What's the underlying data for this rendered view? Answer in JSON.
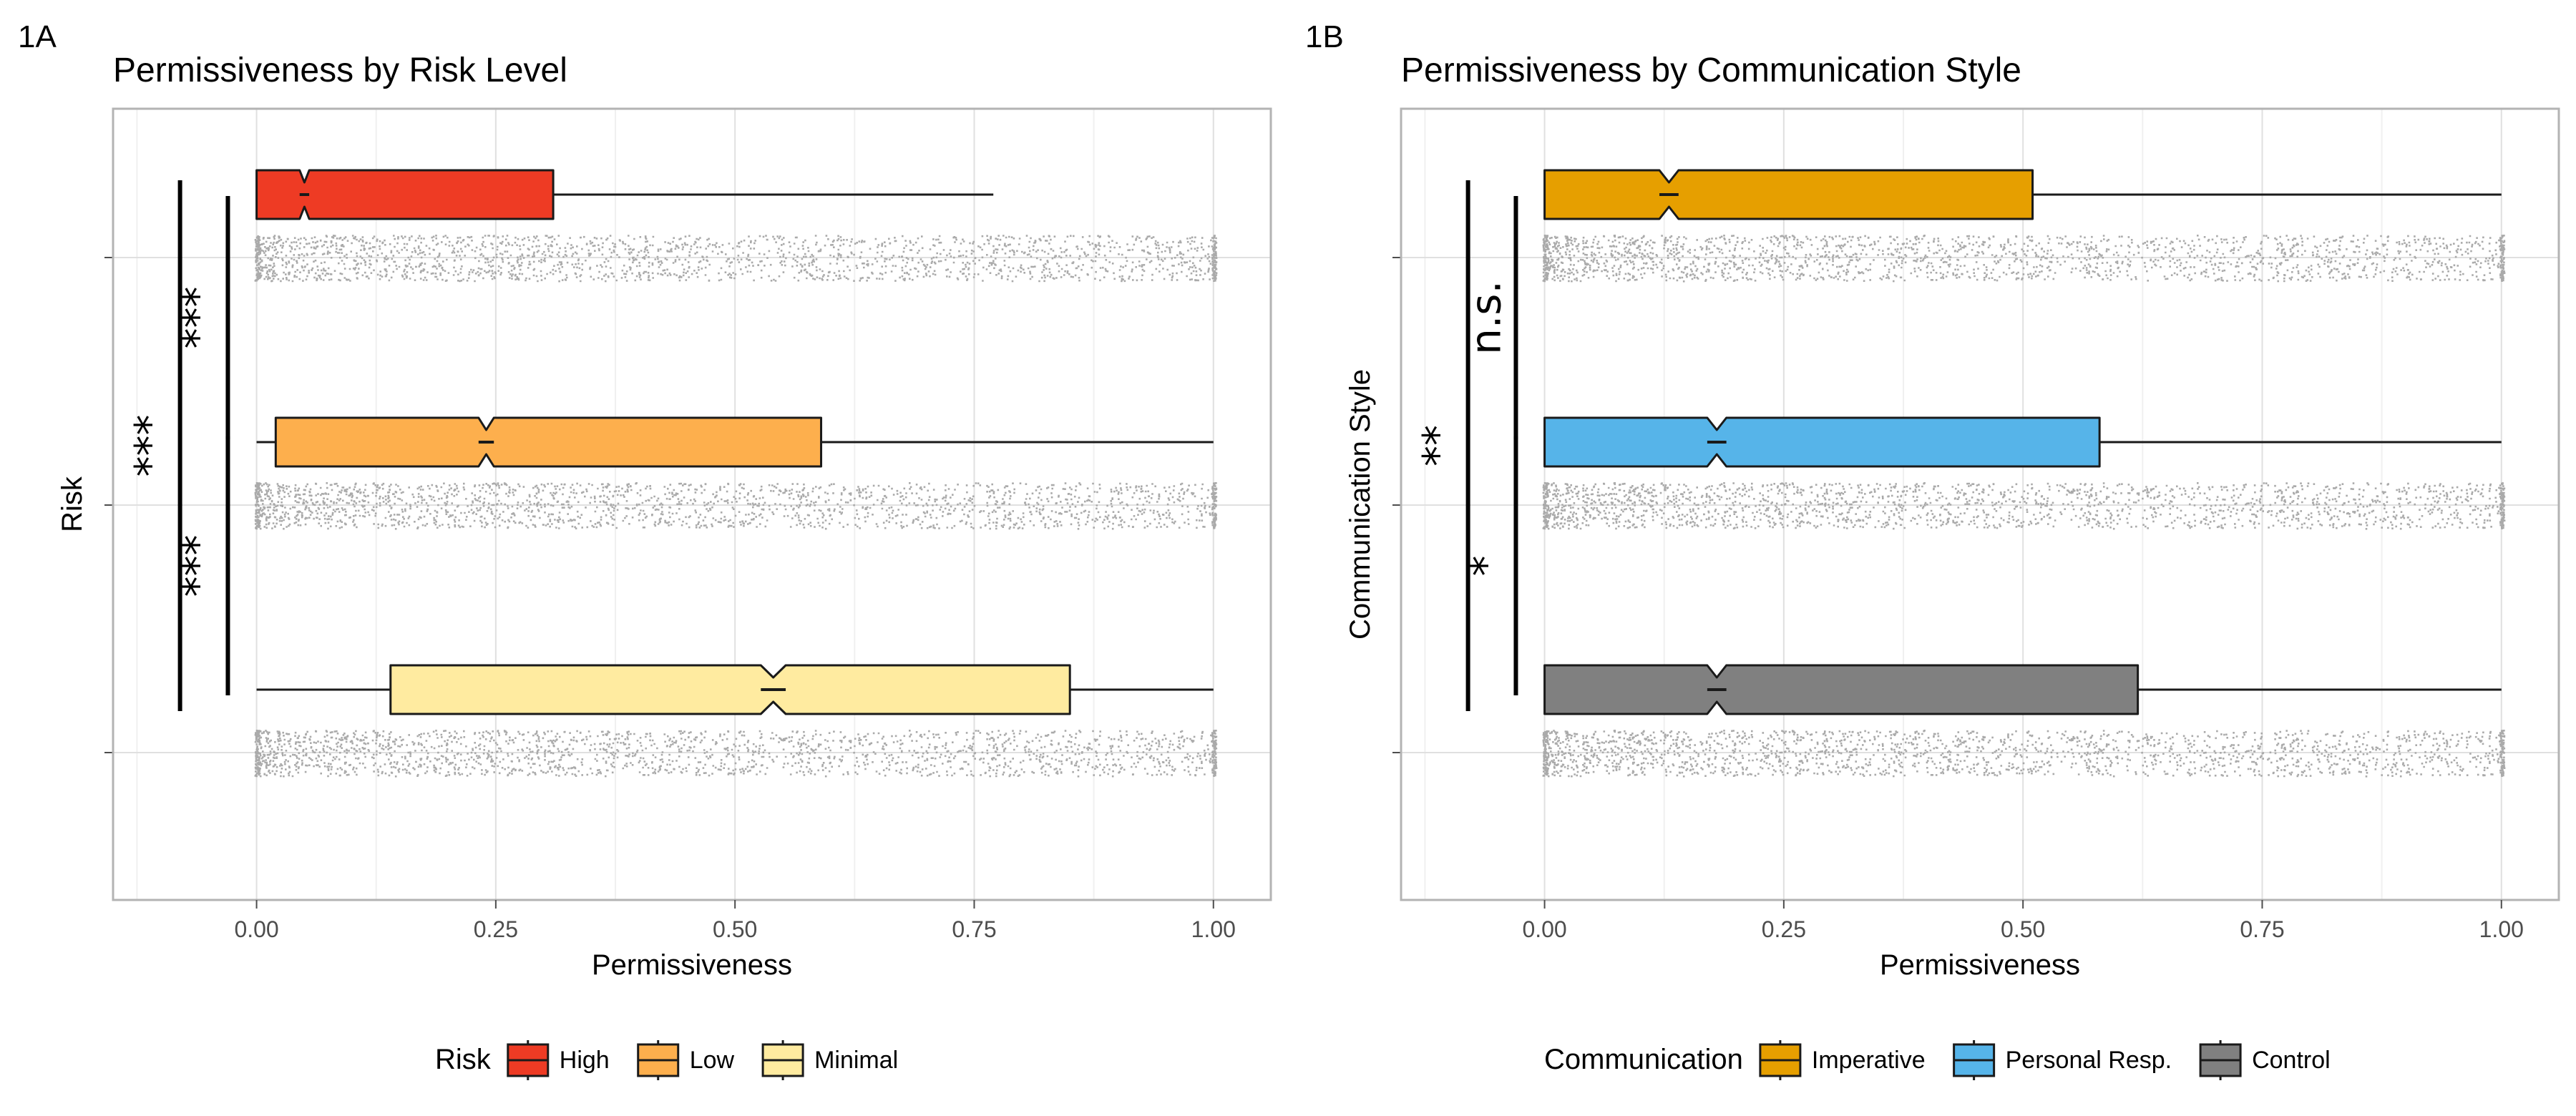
{
  "chart_data": [
    {
      "panel_tag": "1A",
      "type": "boxplot",
      "orientation": "horizontal",
      "notched": true,
      "title": "Permissiveness by Risk Level",
      "xlabel": "Permissiveness",
      "ylabel": "Risk",
      "xlim": [
        -0.15,
        1.06
      ],
      "xticks": [
        "0.00",
        "0.25",
        "0.50",
        "0.75",
        "1.00"
      ],
      "xtick_values": [
        0,
        0.25,
        0.5,
        0.75,
        1.0
      ],
      "grid": true,
      "legend_title": "Risk",
      "legend_position": "bottom",
      "jittered_points": true,
      "point_color": "#aaaaaa",
      "categories": [
        {
          "name": "High",
          "color": "#ee3b24",
          "whisker_low": 0.0,
          "q1": 0.0,
          "median": 0.05,
          "q3": 0.31,
          "whisker_high": 0.77,
          "notch": 0.005
        },
        {
          "name": "Low",
          "color": "#fdaf4d",
          "whisker_low": 0.0,
          "q1": 0.02,
          "median": 0.24,
          "q3": 0.59,
          "whisker_high": 1.0,
          "notch": 0.008
        },
        {
          "name": "Minimal",
          "color": "#ffeba0",
          "whisker_low": 0.0,
          "q1": 0.14,
          "median": 0.54,
          "q3": 0.85,
          "whisker_high": 1.0,
          "notch": 0.013
        }
      ],
      "significance": [
        {
          "between": [
            "High",
            "Low"
          ],
          "label": "***"
        },
        {
          "between": [
            "Low",
            "Minimal"
          ],
          "label": "***"
        },
        {
          "between": [
            "High",
            "Minimal"
          ],
          "label": "***"
        }
      ]
    },
    {
      "panel_tag": "1B",
      "type": "boxplot",
      "orientation": "horizontal",
      "notched": true,
      "title": "Permissiveness by Communication Style",
      "xlabel": "Permissiveness",
      "ylabel": "Communication Style",
      "xlim": [
        -0.15,
        1.06
      ],
      "xticks": [
        "0.00",
        "0.25",
        "0.50",
        "0.75",
        "1.00"
      ],
      "xtick_values": [
        0,
        0.25,
        0.5,
        0.75,
        1.0
      ],
      "grid": true,
      "legend_title": "Communication",
      "legend_position": "bottom",
      "jittered_points": true,
      "point_color": "#aaaaaa",
      "categories": [
        {
          "name": "Imperative",
          "color": "#e69f00",
          "whisker_low": 0.0,
          "q1": 0.0,
          "median": 0.13,
          "q3": 0.51,
          "whisker_high": 1.0,
          "notch": 0.01
        },
        {
          "name": "Personal Resp.",
          "color": "#56b4e9",
          "whisker_low": 0.0,
          "q1": 0.0,
          "median": 0.18,
          "q3": 0.58,
          "whisker_high": 1.0,
          "notch": 0.01
        },
        {
          "name": "Control",
          "color": "#808080",
          "whisker_low": 0.0,
          "q1": 0.0,
          "median": 0.18,
          "q3": 0.62,
          "whisker_high": 1.0,
          "notch": 0.01
        }
      ],
      "significance": [
        {
          "between": [
            "Imperative",
            "Personal Resp."
          ],
          "label": "n.s."
        },
        {
          "between": [
            "Personal Resp.",
            "Control"
          ],
          "label": "*"
        },
        {
          "between": [
            "Imperative",
            "Control"
          ],
          "label": "**"
        }
      ]
    }
  ]
}
